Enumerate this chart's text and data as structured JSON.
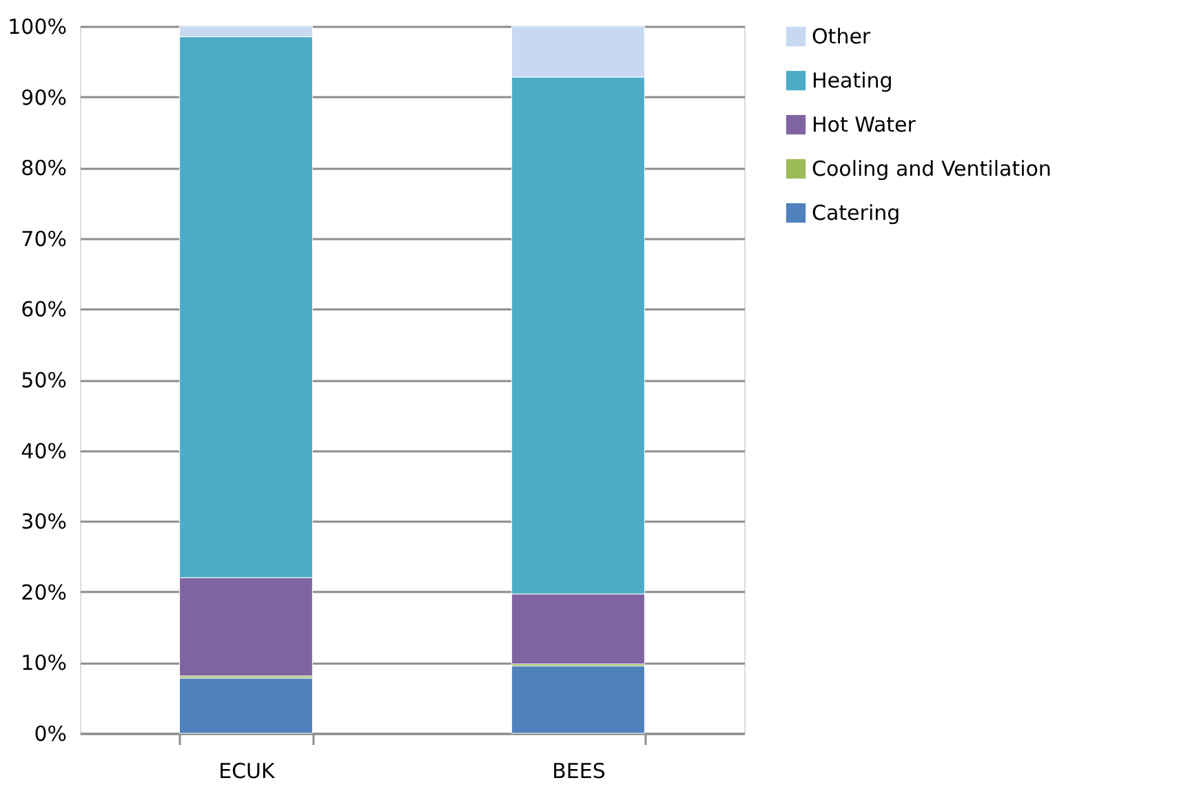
{
  "chart_data": {
    "type": "bar",
    "stacked": true,
    "categories": [
      "ECUK",
      "BEES"
    ],
    "series": [
      {
        "name": "Catering",
        "color": "#4f81bd",
        "values": [
          7.8,
          9.5
        ]
      },
      {
        "name": "Cooling and Ventilation",
        "color": "#9bbb59",
        "values": [
          0.3,
          0.3
        ]
      },
      {
        "name": "Hot Water",
        "color": "#8064a2",
        "values": [
          13.9,
          9.9
        ]
      },
      {
        "name": "Heating",
        "color": "#4bacc6",
        "values": [
          76.5,
          73.1
        ]
      },
      {
        "name": "Other",
        "color": "#c6d9f1",
        "values": [
          1.5,
          7.2
        ]
      }
    ],
    "ylim": [
      0,
      100
    ],
    "yticks": [
      {
        "value": 0,
        "label": "0%"
      },
      {
        "value": 10,
        "label": "10%"
      },
      {
        "value": 20,
        "label": "20%"
      },
      {
        "value": 30,
        "label": "30%"
      },
      {
        "value": 40,
        "label": "40%"
      },
      {
        "value": 50,
        "label": "50%"
      },
      {
        "value": 60,
        "label": "60%"
      },
      {
        "value": 70,
        "label": "70%"
      },
      {
        "value": 80,
        "label": "80%"
      },
      {
        "value": 90,
        "label": "90%"
      },
      {
        "value": 100,
        "label": "100%"
      }
    ],
    "grid": "y",
    "legend": "right"
  }
}
